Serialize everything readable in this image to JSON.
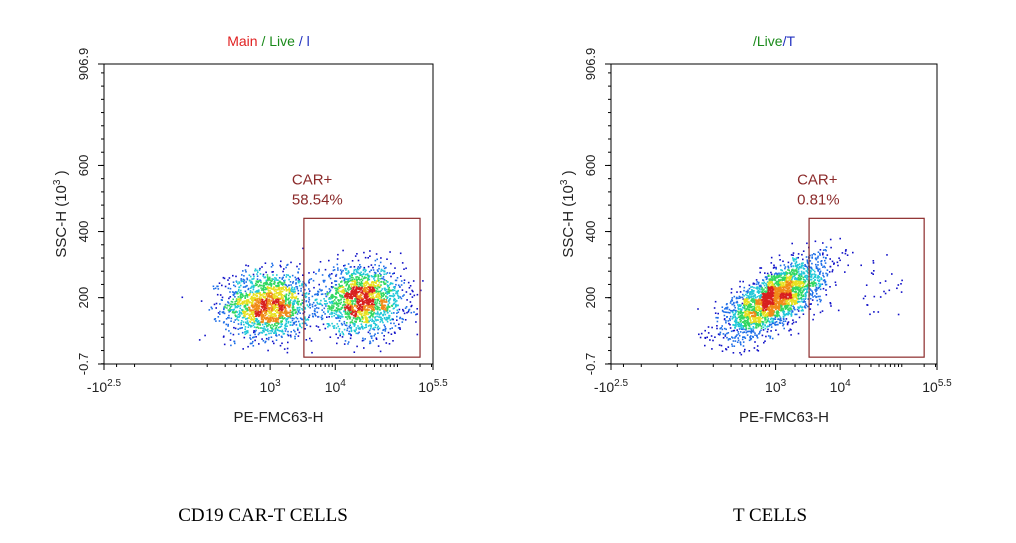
{
  "colors": {
    "frame": "#000000",
    "gate": "#8b2a2a",
    "title_main": "#e02020",
    "title_live": "#1a8a1a",
    "title_sub": "#2030c0",
    "density_low": "#1010c8",
    "density_mid": "#20c8d8",
    "density_high": "#e8e020",
    "density_peak": "#d82020"
  },
  "chart_data": [
    {
      "type": "scatter",
      "title_parts": [
        {
          "text": "Main",
          "color_key": "title_main"
        },
        {
          "text": " / ",
          "color_key": "title_live"
        },
        {
          "text": "Live",
          "color_key": "title_live"
        },
        {
          "text": " / ",
          "color_key": "title_sub"
        },
        {
          "text": "l",
          "color_key": "title_sub"
        }
      ],
      "xlabel": "PE-FMC63-H",
      "ylabel_main": "SSC-H  (10",
      "ylabel_sup": "3",
      "ylabel_end": " )",
      "x_scale": "biexponential",
      "xlim": [
        -316,
        316228
      ],
      "ylim": [
        -0.7,
        906.9
      ],
      "x_ticks": [
        {
          "base": "-10",
          "exp": "2.5",
          "value": -316
        },
        {
          "base": "10",
          "exp": "3",
          "value": 1000
        },
        {
          "base": "10",
          "exp": "4",
          "value": 10000
        },
        {
          "base": "10",
          "exp": "5.5",
          "value": 316228
        }
      ],
      "y_ticks": [
        "-0.7",
        "200",
        "400",
        "600",
        "906.9"
      ],
      "y_tick_values": [
        -0.7,
        200,
        400,
        600,
        906.9
      ],
      "gate": {
        "name": "CAR+",
        "percent": "58.54%",
        "x_range": [
          3300,
          200000
        ],
        "y_range": [
          20,
          440
        ]
      },
      "populations": [
        {
          "x_center": 900,
          "y_center": 180,
          "count": 1700
        },
        {
          "x_center": 25000,
          "y_center": 195,
          "count": 1750
        }
      ],
      "caption": "CD19 CAR-T CELLS"
    },
    {
      "type": "scatter",
      "title_parts": [
        {
          "text": "/",
          "color_key": "title_live"
        },
        {
          "text": "Live",
          "color_key": "title_live"
        },
        {
          "text": "/",
          "color_key": "title_sub"
        },
        {
          "text": "T",
          "color_key": "title_sub"
        }
      ],
      "xlabel": "PE-FMC63-H",
      "ylabel_main": "SSC-H  (10",
      "ylabel_sup": "3",
      "ylabel_end": " )",
      "x_scale": "biexponential",
      "xlim": [
        -316,
        316228
      ],
      "ylim": [
        -0.7,
        906.9
      ],
      "x_ticks": [
        {
          "base": "-10",
          "exp": "2.5",
          "value": -316
        },
        {
          "base": "10",
          "exp": "3",
          "value": 1000
        },
        {
          "base": "10",
          "exp": "4",
          "value": 10000
        },
        {
          "base": "10",
          "exp": "5.5",
          "value": 316228
        }
      ],
      "y_ticks": [
        "-0.7",
        "200",
        "400",
        "600",
        "906.9"
      ],
      "y_tick_values": [
        -0.7,
        200,
        400,
        600,
        906.9
      ],
      "gate": {
        "name": "CAR+",
        "percent": "0.81%",
        "x_range": [
          3300,
          200000
        ],
        "y_range": [
          20,
          440
        ]
      },
      "populations": [
        {
          "x_center": 950,
          "y_center": 200,
          "count": 2600
        }
      ],
      "caption": "T CELLS"
    }
  ]
}
